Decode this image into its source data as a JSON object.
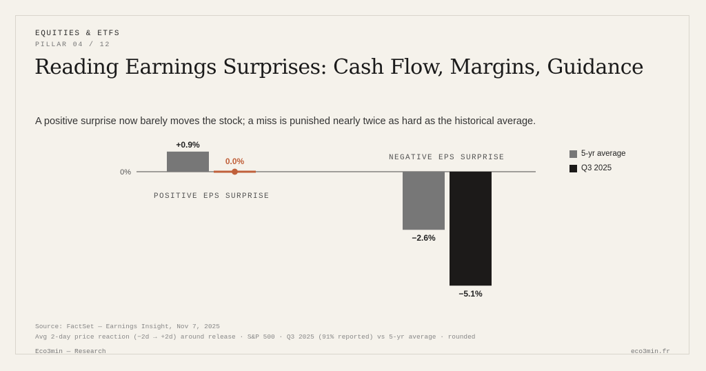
{
  "header": {
    "kicker": "EQUITIES & ETFS",
    "pillar": "PILLAR 04 / 12",
    "title": "Reading Earnings Surprises: Cash Flow, Margins, Guidance",
    "subtitle": "A positive surprise now barely moves the stock; a miss is punished nearly twice as hard as the historical average."
  },
  "chart_data": {
    "type": "bar",
    "categories": [
      "POSITIVE EPS SURPRISE",
      "NEGATIVE EPS SURPRISE"
    ],
    "series": [
      {
        "name": "5-yr average",
        "values": [
          0.9,
          -2.6
        ],
        "labels": [
          "+0.9%",
          "−2.6%"
        ],
        "color": "#777777"
      },
      {
        "name": "Q3 2025",
        "values": [
          0.0,
          -5.1
        ],
        "labels": [
          "0.0%",
          "−5.1%"
        ],
        "color": "#1c1a19"
      }
    ],
    "highlight_color": "#c0603a",
    "zero_label": "0%",
    "ylim": [
      -5.1,
      0.9
    ],
    "grid": false,
    "legend_position": "top-right"
  },
  "footer": {
    "source": "Source: FactSet — Earnings Insight, Nov 7, 2025",
    "note": "Avg 2-day price reaction (−2d → +2d) around release · S&P 500 · Q3 2025 (91% reported) vs 5-yr average · rounded",
    "brand": "Eco3min — Research",
    "site": "eco3min.fr"
  }
}
